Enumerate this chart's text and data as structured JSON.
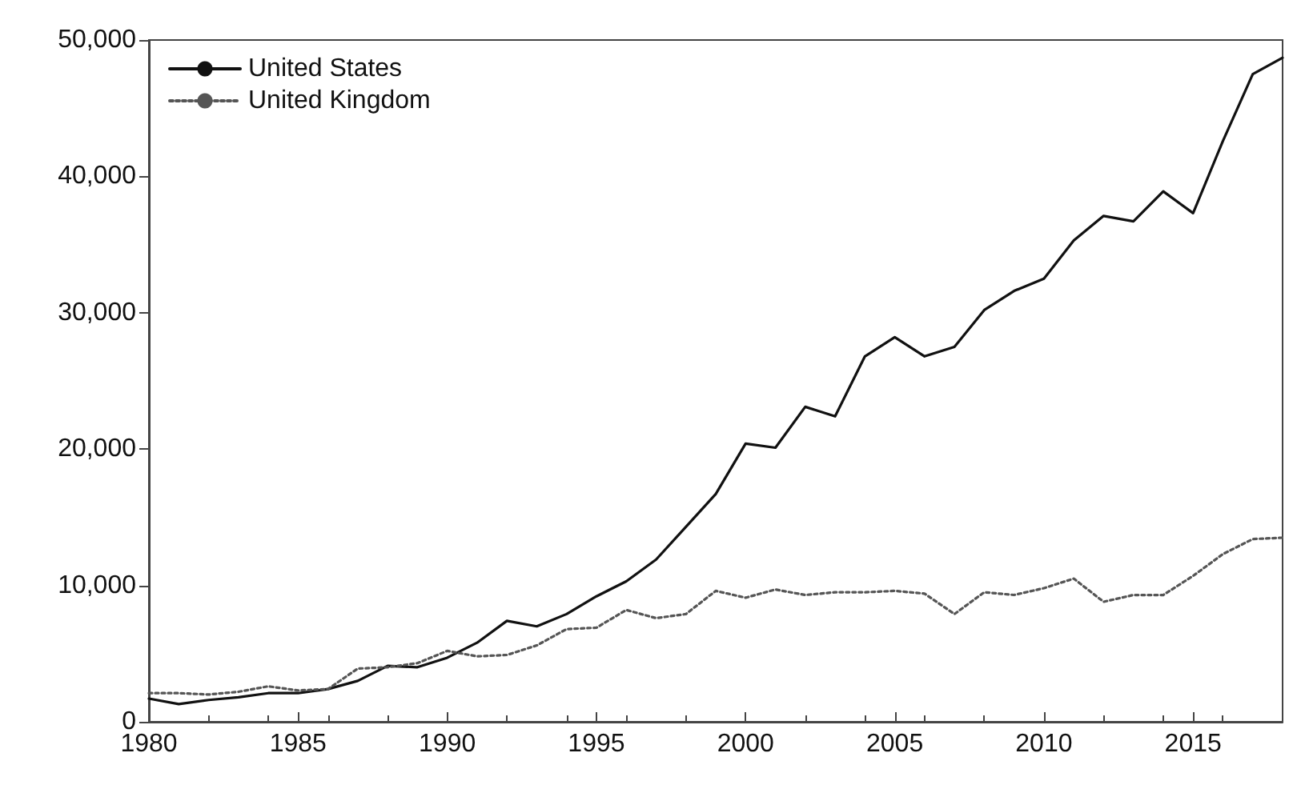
{
  "chart_data": {
    "type": "line",
    "x": [
      1980,
      1981,
      1982,
      1983,
      1984,
      1985,
      1986,
      1987,
      1988,
      1989,
      1990,
      1991,
      1992,
      1993,
      1994,
      1995,
      1996,
      1997,
      1998,
      1999,
      2000,
      2001,
      2002,
      2003,
      2004,
      2005,
      2006,
      2007,
      2008,
      2009,
      2010,
      2011,
      2012,
      2013,
      2014,
      2015,
      2016,
      2017,
      2018
    ],
    "series": [
      {
        "name": "United States",
        "color": "#111111",
        "line_style": "solid",
        "values": [
          1700,
          1300,
          1600,
          1800,
          2100,
          2100,
          2400,
          3000,
          4100,
          4000,
          4700,
          5800,
          7400,
          7000,
          7900,
          9200,
          10300,
          11900,
          14300,
          16700,
          20400,
          20100,
          23100,
          22400,
          26800,
          28200,
          26800,
          27500,
          30200,
          31600,
          32500,
          35300,
          37100,
          36700,
          38900,
          37300,
          42600,
          47500,
          48700
        ]
      },
      {
        "name": "United Kingdom",
        "color": "#555555",
        "line_style": "dotted",
        "values": [
          2100,
          2100,
          2000,
          2200,
          2600,
          2300,
          2400,
          3900,
          4000,
          4300,
          5200,
          4800,
          4900,
          5600,
          6800,
          6900,
          8200,
          7600,
          7900,
          9600,
          9100,
          9700,
          9300,
          9500,
          9500,
          9600,
          9400,
          7900,
          9500,
          9300,
          9800,
          10500,
          8800,
          9300,
          9300,
          10700,
          12300,
          13400,
          13500
        ]
      }
    ],
    "xlim": [
      1980,
      2018
    ],
    "xticks": [
      1980,
      1985,
      1990,
      1995,
      2000,
      2005,
      2010,
      2015
    ],
    "ylim": [
      0,
      50000
    ],
    "yticks": [
      0,
      {
        "value": 10000,
        "label": "10,000"
      },
      {
        "value": 20000,
        "label": "20,000"
      },
      {
        "value": 30000,
        "label": "30,000"
      },
      {
        "value": 40000,
        "label": "40,000"
      },
      {
        "value": 50000,
        "label": "50,000"
      }
    ],
    "grid": false,
    "legend": "top left",
    "marker": "none"
  }
}
